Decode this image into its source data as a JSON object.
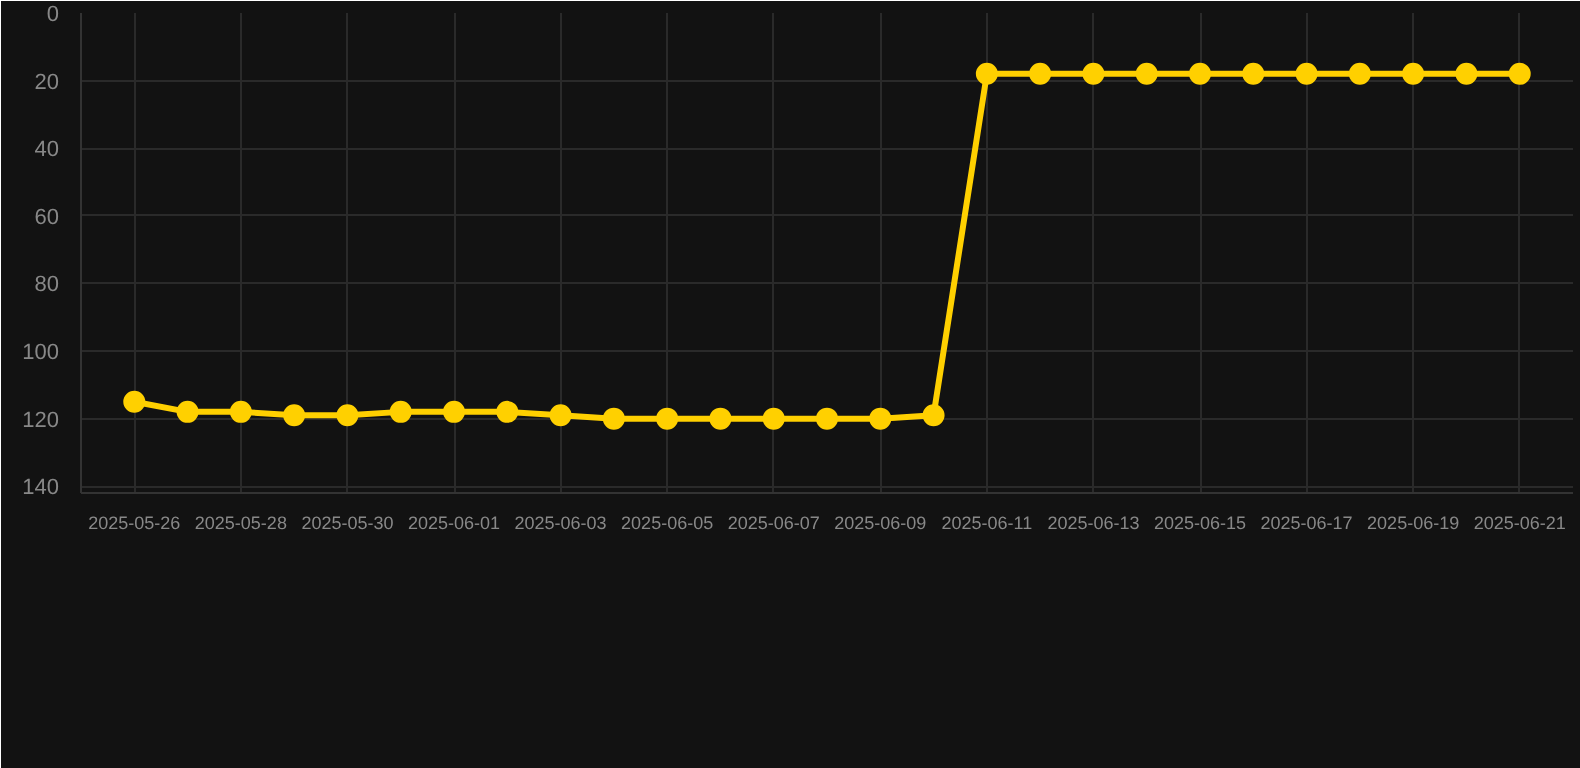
{
  "chart_data": {
    "type": "line",
    "x": [
      "2025-05-26",
      "2025-05-27",
      "2025-05-28",
      "2025-05-29",
      "2025-05-30",
      "2025-05-31",
      "2025-06-01",
      "2025-06-02",
      "2025-06-03",
      "2025-06-04",
      "2025-06-05",
      "2025-06-06",
      "2025-06-07",
      "2025-06-08",
      "2025-06-09",
      "2025-06-10",
      "2025-06-11",
      "2025-06-12",
      "2025-06-13",
      "2025-06-14",
      "2025-06-15",
      "2025-06-16",
      "2025-06-17",
      "2025-06-18",
      "2025-06-19",
      "2025-06-20",
      "2025-06-21"
    ],
    "series": [
      {
        "color": "#ffd000",
        "values": [
          115,
          118,
          118,
          119,
          119,
          118,
          118,
          118,
          119,
          120,
          120,
          120,
          120,
          120,
          120,
          119,
          18,
          18,
          18,
          18,
          18,
          18,
          18,
          18,
          18,
          18,
          18
        ]
      }
    ],
    "xlim": [
      "2025-05-25",
      "2025-06-22"
    ],
    "xticks": [
      "2025-05-26",
      "2025-05-28",
      "2025-05-30",
      "2025-06-01",
      "2025-06-03",
      "2025-06-05",
      "2025-06-07",
      "2025-06-09",
      "2025-06-11",
      "2025-06-13",
      "2025-06-15",
      "2025-06-17",
      "2025-06-19",
      "2025-06-21"
    ],
    "ylim": [
      142,
      0
    ],
    "yticks": [
      0,
      20,
      40,
      60,
      80,
      100,
      120,
      140
    ],
    "grid": true,
    "marker": "circle",
    "line_style": "solid"
  }
}
